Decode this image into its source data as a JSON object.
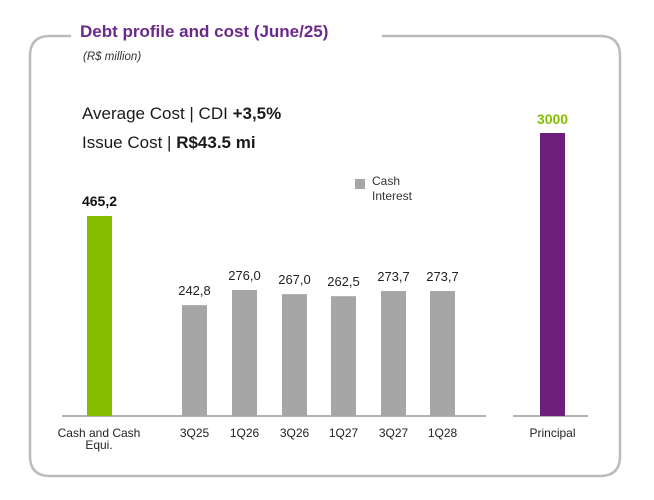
{
  "header": {
    "title": "Debt profile and cost (June/25)",
    "unit": "(R$ million)"
  },
  "metrics": {
    "average_cost_label": "Average Cost | CDI",
    "average_cost_value": "+3,5%",
    "issue_cost_label": "Issue Cost |",
    "issue_cost_value": "R$43.5 mi"
  },
  "colors": {
    "cash": "#84bd00",
    "interest": "#a6a6a6",
    "principal": "#6d1f7e",
    "title": "#6b2a8a",
    "frame": "#bcbcbc"
  },
  "chart_data": [
    {
      "type": "bar",
      "name": "cash",
      "categories": [
        "Cash and Cash Equi."
      ],
      "category_lines": [
        [
          "Cash and Cash",
          "Equi."
        ]
      ],
      "values": [
        465.2
      ],
      "labels": [
        "465,2"
      ]
    },
    {
      "type": "bar",
      "name": "cash-interest",
      "legend": [
        "Cash",
        "Interest"
      ],
      "categories": [
        "3Q25",
        "1Q26",
        "3Q26",
        "1Q27",
        "3Q27",
        "1Q28"
      ],
      "values": [
        242.8,
        276.0,
        267.0,
        262.5,
        273.7,
        273.7
      ],
      "labels": [
        "242,8",
        "276,0",
        "267,0",
        "262,5",
        "273,7",
        "273,7"
      ]
    },
    {
      "type": "bar",
      "name": "principal",
      "categories": [
        "Principal"
      ],
      "values": [
        3000
      ],
      "labels": [
        "3000"
      ]
    }
  ]
}
